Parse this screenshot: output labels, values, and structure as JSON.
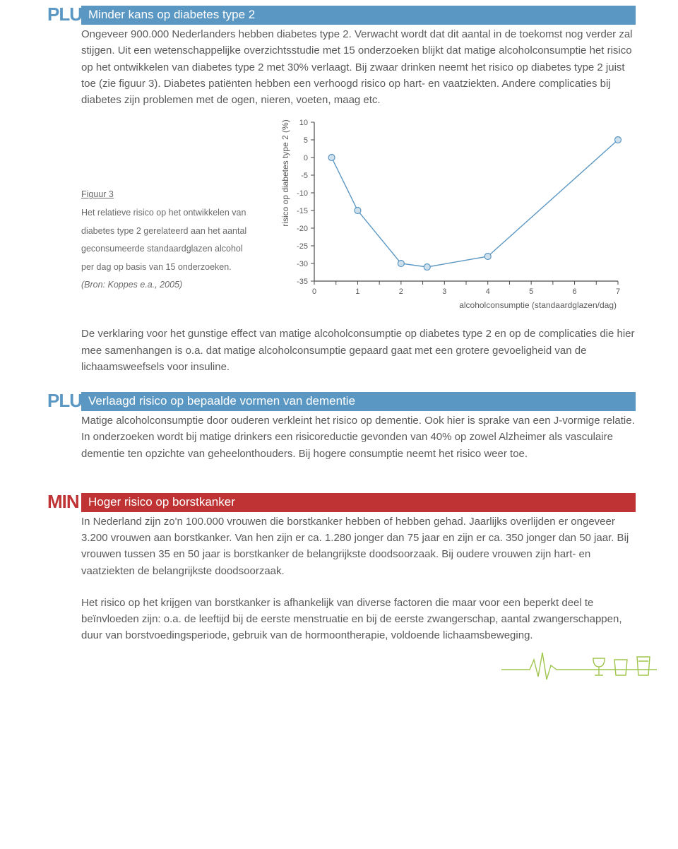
{
  "colors": {
    "plus": "#5b97c3",
    "min": "#bf3334",
    "text": "#5a5a5a",
    "chart_line": "#5b97c3",
    "chart_point_fill": "#cfe0ed",
    "chart_point_stroke": "#5b97c3",
    "chart_axis": "#4a4a4a",
    "deco_green": "#9fc54d"
  },
  "sections": {
    "diabetes": {
      "badge": "PLUS",
      "title": "Minder kans op diabetes type 2",
      "body": "Ongeveer 900.000 Nederlanders hebben diabetes type 2. Verwacht wordt dat dit aantal in de toekomst nog verder zal stijgen. Uit een wetenschappelijke overzichtsstudie met 15 onderzoeken blijkt dat matige alcoholconsumptie het risico op het ontwikkelen van diabetes type 2 met 30% verlaagt. Bij zwaar drinken neemt het risico op diabetes type 2 juist toe (zie figuur 3). Diabetes patiënten hebben een verhoogd risico op hart- en vaatziekten. Andere complicaties bij diabetes zijn problemen met de ogen, nieren, voeten, maag etc.",
      "body2": "De verklaring voor het gunstige effect van matige alcoholconsumptie op diabetes type 2 en op de complicaties die hier mee samenhangen is o.a. dat matige alcoholconsumptie gepaard gaat met een grotere gevoeligheid van de lichaamsweefsels voor insuline."
    },
    "dementie": {
      "badge": "PLUS",
      "title": "Verlaagd risico op bepaalde vormen van dementie",
      "body": "Matige alcoholconsumptie door ouderen verkleint het risico op dementie. Ook hier is sprake van een J-vormige relatie. In onderzoeken wordt bij matige drinkers een risicoreductie gevonden van 40% op zowel Alzheimer als vasculaire dementie ten opzichte van geheelonthouders. Bij hogere consumptie neemt het risico weer toe."
    },
    "borstkanker": {
      "badge": "MIN",
      "title": "Hoger risico op borstkanker",
      "body": "In Nederland zijn zo'n 100.000 vrouwen die borstkanker hebben of hebben gehad. Jaarlijks overlijden er ongeveer 3.200 vrouwen aan borstkanker. Van hen zijn er ca. 1.280 jonger dan 75 jaar en zijn er ca. 350 jonger dan 50 jaar. Bij vrouwen tussen 35 en 50 jaar is borstkanker de belangrijkste doodsoorzaak. Bij oudere vrouwen zijn hart- en vaatziekten de belangrijkste doodsoorzaak.",
      "body2": "Het risico op het krijgen van borstkanker is afhankelijk van diverse factoren die maar voor een beperkt deel te beïnvloeden zijn: o.a. de leeftijd bij de eerste menstruatie en bij de eerste zwangerschap, aantal zwangerschappen, duur van borstvoedingsperiode, gebruik van de hormoontherapie, voldoende lichaamsbeweging."
    }
  },
  "figure": {
    "label": "Figuur 3",
    "caption_lines": [
      "Het relatieve risico op het ontwikkelen van",
      "diabetes type 2 gerelateerd aan het aantal",
      "geconsumeerde standaardglazen alcohol",
      "per dag op basis van 15 onderzoeken."
    ],
    "source": "(Bron: Koppes e.a., 2005)"
  },
  "chart": {
    "type": "line",
    "ylabel": "risico op diabetes type 2 (%)",
    "xlabel": "alcoholconsumptie (standaardglazen/dag)",
    "xlim": [
      0,
      7
    ],
    "ylim": [
      -35,
      10
    ],
    "xtick_step": 1,
    "ytick_step": 5,
    "xticks": [
      0,
      1,
      2,
      3,
      4,
      5,
      6,
      7
    ],
    "yticks": [
      10,
      5,
      0,
      -5,
      -10,
      -15,
      -20,
      -25,
      -30,
      -35
    ],
    "line_color": "#5b97c3",
    "line_width": 1.4,
    "point_fill": "#cfe0ed",
    "point_stroke": "#5b97c3",
    "point_radius": 4.5,
    "background_color": "#ffffff",
    "axis_color": "#4a4a4a",
    "tick_fontsize": 11,
    "label_fontsize": 12,
    "points": [
      {
        "x": 0.4,
        "y": 0
      },
      {
        "x": 1.0,
        "y": -15
      },
      {
        "x": 2.0,
        "y": -30
      },
      {
        "x": 2.6,
        "y": -31
      },
      {
        "x": 4.0,
        "y": -28
      },
      {
        "x": 7.0,
        "y": 5
      }
    ]
  }
}
